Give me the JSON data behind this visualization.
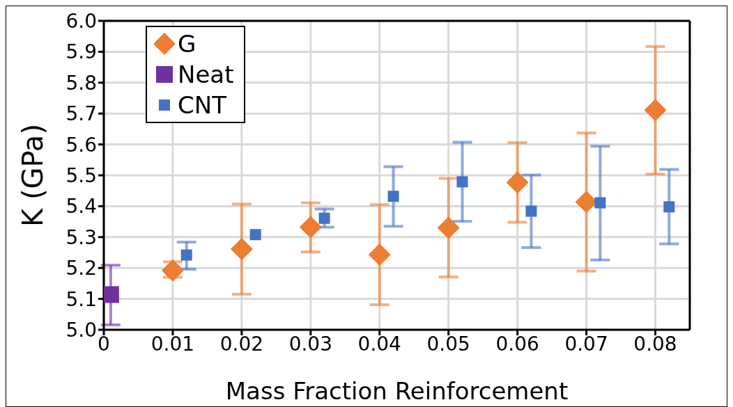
{
  "chart_data": {
    "type": "scatter",
    "xlabel": "Mass Fraction Reinforcement",
    "ylabel": "K (GPa)",
    "xlim": [
      0,
      0.085
    ],
    "xticks": [
      0,
      0.01,
      0.02,
      0.03,
      0.04,
      0.05,
      0.06,
      0.07,
      0.08
    ],
    "ylim": [
      5.0,
      6.0
    ],
    "yticks": [
      {
        "value": 5.0,
        "label": "5.0"
      },
      5.1,
      5.2,
      5.3,
      5.4,
      5.5,
      5.6,
      5.7,
      5.8,
      5.9,
      {
        "value": 6.0,
        "label": "6.0"
      }
    ],
    "grid": true,
    "legend": "top left",
    "series": [
      {
        "name": "G",
        "color": "#ed7d31",
        "marker": "diamond",
        "x": [
          0.01,
          0.02,
          0.03,
          0.04,
          0.05,
          0.06,
          0.07,
          0.08
        ],
        "values": [
          5.192,
          5.261,
          5.332,
          5.243,
          5.33,
          5.477,
          5.414,
          5.711
        ],
        "errors": [
          [
            5.17,
            5.22
          ],
          [
            5.115,
            5.407
          ],
          [
            5.252,
            5.411
          ],
          [
            5.081,
            5.405
          ],
          [
            5.171,
            5.49
          ],
          [
            5.348,
            5.606
          ],
          [
            5.19,
            5.637
          ],
          [
            5.504,
            5.917
          ]
        ]
      },
      {
        "name": "Neat",
        "color": "#7030a0",
        "marker": "square",
        "x": [
          0.001
        ],
        "values": [
          5.114
        ],
        "errors": [
          [
            5.016,
            5.209
          ]
        ]
      },
      {
        "name": "CNT",
        "color": "#4472c4",
        "marker": "square",
        "x": [
          0.012,
          0.022,
          0.032,
          0.042,
          0.052,
          0.062,
          0.072,
          0.082
        ],
        "values": [
          5.242,
          5.308,
          5.361,
          5.432,
          5.479,
          5.384,
          5.411,
          5.398
        ],
        "errors": [
          [
            5.196,
            5.284
          ],
          null,
          [
            5.332,
            5.391
          ],
          [
            5.335,
            5.528
          ],
          [
            5.351,
            5.607
          ],
          [
            5.266,
            5.501
          ],
          [
            5.226,
            5.594
          ],
          [
            5.278,
            5.519
          ]
        ]
      }
    ]
  }
}
